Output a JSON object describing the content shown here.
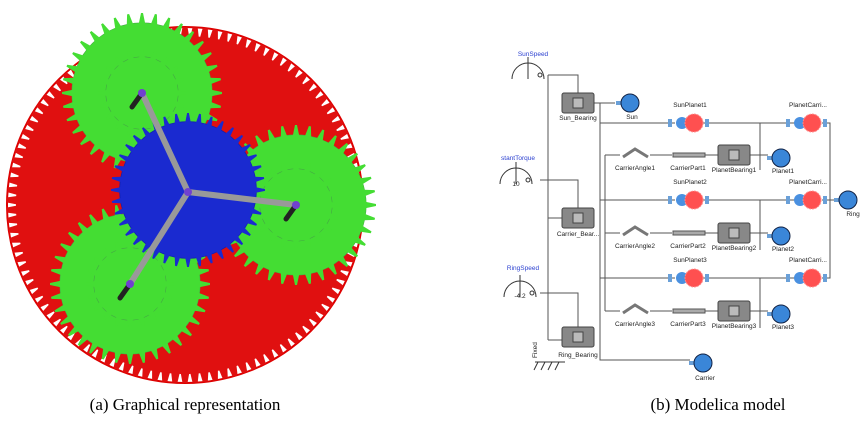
{
  "captions": {
    "a": "(a) Graphical representation",
    "b": "(b) Modelica model"
  },
  "model": {
    "sources": [
      "SunSpeed",
      "stantTorque",
      "10",
      "RingSpeed",
      "-4.2",
      "Fixed"
    ],
    "bearings": [
      "Sun_Bearing",
      "Carrier_Bear...",
      "Ring_Bearing"
    ],
    "bodies": [
      "Sun",
      "Ring",
      "Carrier",
      "Planet1",
      "Planet2",
      "Planet3"
    ],
    "gears": [
      "SunPlanet1",
      "PlanetCarri...",
      "SunPlanet2",
      "PlanetCarri...",
      "SunPlanet3",
      "PlanetCarri..."
    ],
    "planet_parts": [
      "CarrierAngle1",
      "CarrierPart1",
      "PlanetBearing1",
      "CarrierAngle2",
      "CarrierPart2",
      "PlanetBearing2",
      "CarrierAngle3",
      "CarrierPart3",
      "PlanetBearing3"
    ]
  }
}
